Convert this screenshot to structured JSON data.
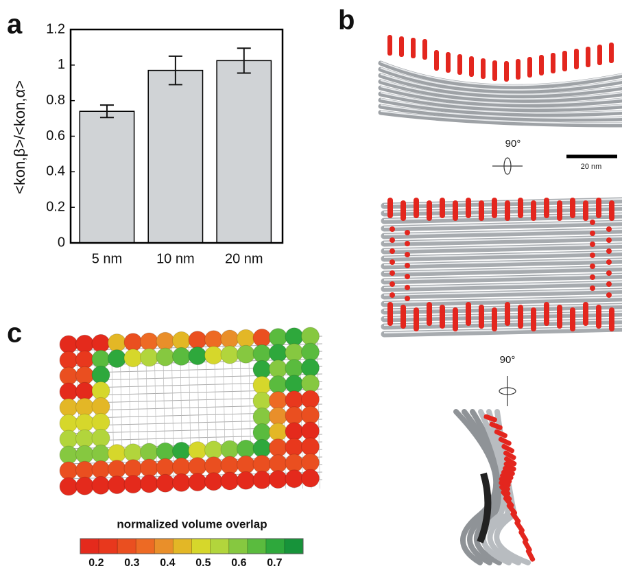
{
  "panel_labels": [
    "a",
    "b",
    "c"
  ],
  "chart_data": {
    "type": "bar",
    "ylabel": "<kon,β>/<kon,α>",
    "categories": [
      "5 nm",
      "10 nm",
      "20 nm"
    ],
    "values": [
      0.74,
      0.97,
      1.025
    ],
    "errors": [
      0.035,
      0.08,
      0.07
    ],
    "color": "#d0d3d6",
    "ylim": [
      0,
      1.2
    ],
    "yticks": [
      0,
      0.2,
      0.4,
      0.6,
      0.8,
      1,
      1.2
    ]
  },
  "panel_b": {
    "rotation_1": "90°",
    "scale_bar": "20 nm",
    "rotation_2": "90°"
  },
  "panel_c": {
    "colorbar": {
      "label": "normalized volume overlap",
      "clim": [
        0.155,
        0.78
      ],
      "ticks": [
        0.2,
        0.3,
        0.4,
        0.5,
        0.6,
        0.7
      ],
      "colors": [
        "#e42a1c",
        "#e8381d",
        "#ea4f20",
        "#ed6a24",
        "#e98f2a",
        "#e3b726",
        "#d6d72b",
        "#b2d53c",
        "#86c840",
        "#5abb3e",
        "#2ea83c",
        "#17933a"
      ]
    }
  }
}
